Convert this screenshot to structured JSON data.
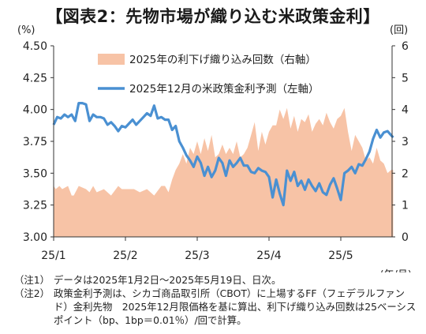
{
  "title": "【図表2：先物市場が織り込む米政策金利】",
  "notes": [
    {
      "tag": "（注1）",
      "text": "データは2025年1月2日～2025年5月19日、日次。"
    },
    {
      "tag": "（注2）",
      "text": "政策金利予測は、シカゴ商品取引所（CBOT）に上場するFF（フェデラルファンド）金利先物　2025年12月限価格を基に算出、利下げ織り込み回数は25ベーシスポイント（bp、1bp＝0.01％）/回で計算。"
    }
  ],
  "chart_data": {
    "type": "line",
    "left_unit": "(%)",
    "right_unit": "(回)",
    "x_unit": "(年/月)",
    "x_ticks": [
      "25/1",
      "25/2",
      "25/3",
      "25/4",
      "25/5"
    ],
    "left_axis": {
      "min": 3.0,
      "max": 4.5,
      "ticks": [
        "3.00",
        "3.25",
        "3.50",
        "3.75",
        "4.00",
        "4.25",
        "4.50"
      ]
    },
    "right_axis": {
      "min": 0,
      "max": 6,
      "ticks": [
        "0",
        "1",
        "2",
        "3",
        "4",
        "5",
        "6"
      ]
    },
    "colors": {
      "area": "#f7c3a6",
      "line": "#4a90d2"
    },
    "series": [
      {
        "name": "2025年の利下げ織り込み回数（右軸）",
        "kind": "area",
        "axis": "right",
        "x": [
          0,
          0.03,
          0.08,
          0.12,
          0.2,
          0.25,
          0.28,
          0.35,
          0.45,
          0.5,
          0.55,
          0.6,
          0.7,
          0.8,
          0.9,
          0.95,
          1.0,
          1.05,
          1.12,
          1.2,
          1.3,
          1.4,
          1.5,
          1.55,
          1.6,
          1.65,
          1.7,
          1.75,
          1.8,
          1.85,
          1.9,
          1.95,
          2.0,
          2.05,
          2.1,
          2.15,
          2.2,
          2.25,
          2.3,
          2.35,
          2.4,
          2.45,
          2.5,
          2.55,
          2.6,
          2.65,
          2.7,
          2.75,
          2.8,
          2.85,
          2.9,
          2.95,
          3.0,
          3.05,
          3.1,
          3.15,
          3.2,
          3.25,
          3.3,
          3.35,
          3.4,
          3.45,
          3.5,
          3.55,
          3.6,
          3.65,
          3.7,
          3.75,
          3.8,
          3.85,
          3.9,
          3.95,
          4.0,
          4.05,
          4.1,
          4.15,
          4.2,
          4.25,
          4.3,
          4.35,
          4.4,
          4.45,
          4.5,
          4.55,
          4.6,
          4.65,
          4.7,
          4.73
        ],
        "values": [
          1.6,
          1.5,
          1.6,
          1.5,
          1.6,
          1.3,
          1.3,
          1.6,
          1.5,
          1.4,
          1.6,
          1.4,
          1.5,
          1.3,
          1.6,
          1.5,
          1.5,
          1.5,
          1.5,
          1.4,
          1.5,
          1.3,
          1.6,
          1.6,
          1.4,
          1.8,
          2.1,
          2.3,
          2.6,
          2.3,
          2.8,
          2.6,
          3.0,
          2.6,
          3.1,
          2.7,
          3.2,
          2.5,
          2.6,
          2.9,
          2.6,
          2.8,
          2.6,
          3.0,
          2.5,
          2.6,
          2.8,
          3.2,
          3.6,
          2.7,
          3.3,
          2.9,
          3.3,
          3.5,
          3.5,
          4.0,
          3.7,
          4.05,
          3.4,
          3.8,
          3.3,
          3.7,
          3.6,
          3.85,
          3.3,
          3.55,
          3.7,
          3.5,
          3.9,
          3.6,
          3.4,
          3.7,
          3.8,
          4.05,
          3.3,
          2.7,
          3.2,
          3.0,
          2.8,
          2.4,
          2.5,
          2.3,
          2.8,
          2.4,
          2.3,
          2.0,
          2.1,
          2.1
        ]
      },
      {
        "name": "2025年12月の米政策金利予測（左軸）",
        "kind": "line",
        "axis": "left",
        "x": [
          0,
          0.05,
          0.1,
          0.15,
          0.2,
          0.25,
          0.3,
          0.35,
          0.4,
          0.45,
          0.5,
          0.55,
          0.6,
          0.65,
          0.7,
          0.75,
          0.8,
          0.85,
          0.9,
          0.95,
          1.0,
          1.05,
          1.1,
          1.15,
          1.2,
          1.25,
          1.3,
          1.35,
          1.4,
          1.45,
          1.5,
          1.55,
          1.6,
          1.65,
          1.7,
          1.75,
          1.8,
          1.85,
          1.9,
          1.95,
          2.0,
          2.05,
          2.1,
          2.15,
          2.2,
          2.25,
          2.3,
          2.35,
          2.4,
          2.45,
          2.5,
          2.55,
          2.6,
          2.65,
          2.7,
          2.75,
          2.8,
          2.85,
          2.9,
          2.95,
          3.0,
          3.05,
          3.1,
          3.15,
          3.2,
          3.25,
          3.3,
          3.35,
          3.4,
          3.45,
          3.5,
          3.55,
          3.6,
          3.65,
          3.7,
          3.75,
          3.8,
          3.85,
          3.9,
          3.95,
          4.0,
          4.05,
          4.1,
          4.15,
          4.2,
          4.25,
          4.3,
          4.35,
          4.4,
          4.45,
          4.5,
          4.55,
          4.6,
          4.65,
          4.73
        ],
        "values": [
          3.88,
          3.94,
          3.93,
          3.96,
          3.94,
          3.96,
          3.91,
          4.05,
          4.05,
          4.04,
          3.91,
          3.96,
          3.94,
          3.94,
          3.93,
          3.88,
          3.9,
          3.87,
          3.83,
          3.87,
          3.86,
          3.89,
          3.92,
          3.88,
          3.91,
          3.94,
          3.97,
          3.95,
          4.03,
          3.93,
          3.94,
          3.92,
          3.92,
          3.84,
          3.87,
          3.75,
          3.7,
          3.64,
          3.6,
          3.55,
          3.63,
          3.58,
          3.48,
          3.55,
          3.47,
          3.52,
          3.62,
          3.58,
          3.48,
          3.6,
          3.55,
          3.58,
          3.62,
          3.56,
          3.56,
          3.51,
          3.5,
          3.54,
          3.52,
          3.51,
          3.47,
          3.31,
          3.45,
          3.34,
          3.25,
          3.52,
          3.44,
          3.51,
          3.4,
          3.44,
          3.37,
          3.45,
          3.4,
          3.36,
          3.42,
          3.35,
          3.33,
          3.41,
          3.46,
          3.38,
          3.29,
          3.5,
          3.52,
          3.55,
          3.5,
          3.57,
          3.56,
          3.61,
          3.67,
          3.77,
          3.84,
          3.78,
          3.82,
          3.83,
          3.78
        ]
      }
    ],
    "legend": "top-center, inside plot"
  }
}
